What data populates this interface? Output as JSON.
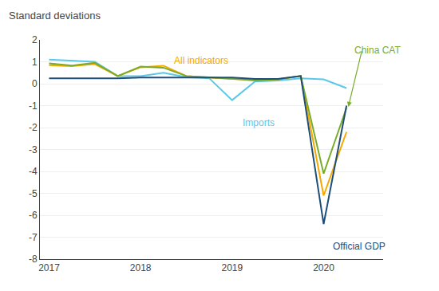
{
  "chart_data": {
    "type": "line",
    "title": "Standard deviations",
    "x": [
      2017.0,
      2017.25,
      2017.5,
      2017.75,
      2018.0,
      2018.25,
      2018.5,
      2018.75,
      2019.0,
      2019.25,
      2019.5,
      2019.75,
      2020.0,
      2020.25
    ],
    "series": [
      {
        "name": "Imports",
        "color": "#5bc8e8",
        "values": [
          1.1,
          1.05,
          1.0,
          0.35,
          0.35,
          0.5,
          0.3,
          0.25,
          -0.75,
          0.1,
          0.15,
          0.25,
          0.2,
          -0.2
        ]
      },
      {
        "name": "All indicators",
        "color": "#f5a800",
        "values": [
          0.85,
          0.8,
          0.9,
          0.35,
          0.75,
          0.82,
          0.35,
          0.28,
          0.22,
          0.18,
          0.2,
          0.35,
          -5.1,
          -2.2
        ]
      },
      {
        "name": "China CAT",
        "color": "#7aab2a",
        "values": [
          0.93,
          0.83,
          0.95,
          0.35,
          0.78,
          0.73,
          0.35,
          0.3,
          0.23,
          0.15,
          0.2,
          0.35,
          -4.1,
          -1.1
        ]
      },
      {
        "name": "Official GDP",
        "color": "#1f4e79",
        "values": [
          0.25,
          0.25,
          0.25,
          0.25,
          0.28,
          0.28,
          0.28,
          0.28,
          0.28,
          0.22,
          0.22,
          0.35,
          -6.4,
          -1.0
        ]
      }
    ],
    "annotations": [
      {
        "text": "All indicators",
        "color": "#f5a800",
        "x": 2018.35,
        "y": 0.72
      },
      {
        "text": "Imports",
        "color": "#5bc8e8",
        "x": 2019.1,
        "y": -1.45
      },
      {
        "text": "Official GDP",
        "color": "#1f4e79",
        "x": 2020.08,
        "y": -7.1
      },
      {
        "text": "China CAT",
        "color": "#7aab2a",
        "x": 2020.32,
        "y": 1.85
      }
    ],
    "arrow": {
      "x_start": 2020.42,
      "y_start": 1.55,
      "x_end": 2020.27,
      "y_end": -1.05,
      "color": "#7aab2a"
    },
    "xlim": [
      2016.9,
      2020.65
    ],
    "xticks": [
      2017,
      2018,
      2019,
      2020
    ],
    "ylim": [
      -8,
      2
    ],
    "yticks": [
      -8,
      -7,
      -6,
      -5,
      -4,
      -3,
      -2,
      -1,
      0,
      1,
      2
    ],
    "grid": true
  }
}
